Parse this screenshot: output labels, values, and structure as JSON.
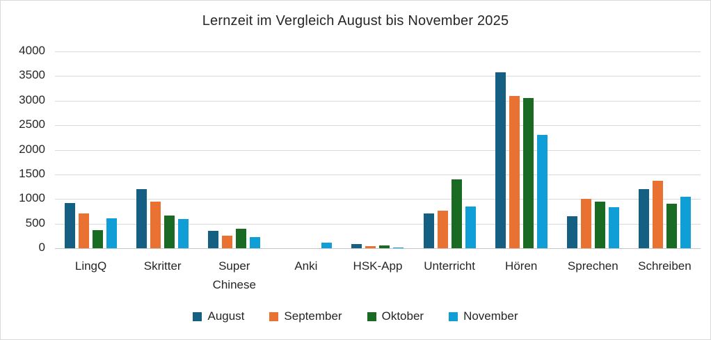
{
  "chart_data": {
    "type": "bar",
    "title": "Lernzeit im Vergleich August bis November 2025",
    "categories": [
      "LingQ",
      "Skritter",
      "Super Chinese",
      "Anki",
      "HSK-App",
      "Unterricht",
      "Hören",
      "Sprechen",
      "Schreiben"
    ],
    "series": [
      {
        "name": "August",
        "color": "#156082",
        "values": [
          920,
          1200,
          350,
          0,
          90,
          700,
          3570,
          650,
          1200
        ]
      },
      {
        "name": "September",
        "color": "#E97132",
        "values": [
          710,
          950,
          250,
          0,
          40,
          760,
          3100,
          1000,
          1370
        ]
      },
      {
        "name": "Oktober",
        "color": "#196B24",
        "values": [
          370,
          670,
          390,
          0,
          60,
          1400,
          3050,
          940,
          900
        ]
      },
      {
        "name": "November",
        "color": "#0F9ED5",
        "values": [
          610,
          590,
          230,
          110,
          20,
          850,
          2310,
          840,
          1050
        ]
      }
    ],
    "y_axis": {
      "min": 0,
      "max": 4000,
      "step": 500,
      "tick_labels": [
        "0",
        "500",
        "1000",
        "1500",
        "2000",
        "2500",
        "3000",
        "3500",
        "4000"
      ]
    },
    "grid": true,
    "legend_position": "bottom"
  },
  "colors": {
    "grid": "#D9D9D9",
    "axis_baseline": "#C6C6C6",
    "text": "#262626",
    "frame_border": "#D9D9D9",
    "background": "#FFFFFF"
  }
}
